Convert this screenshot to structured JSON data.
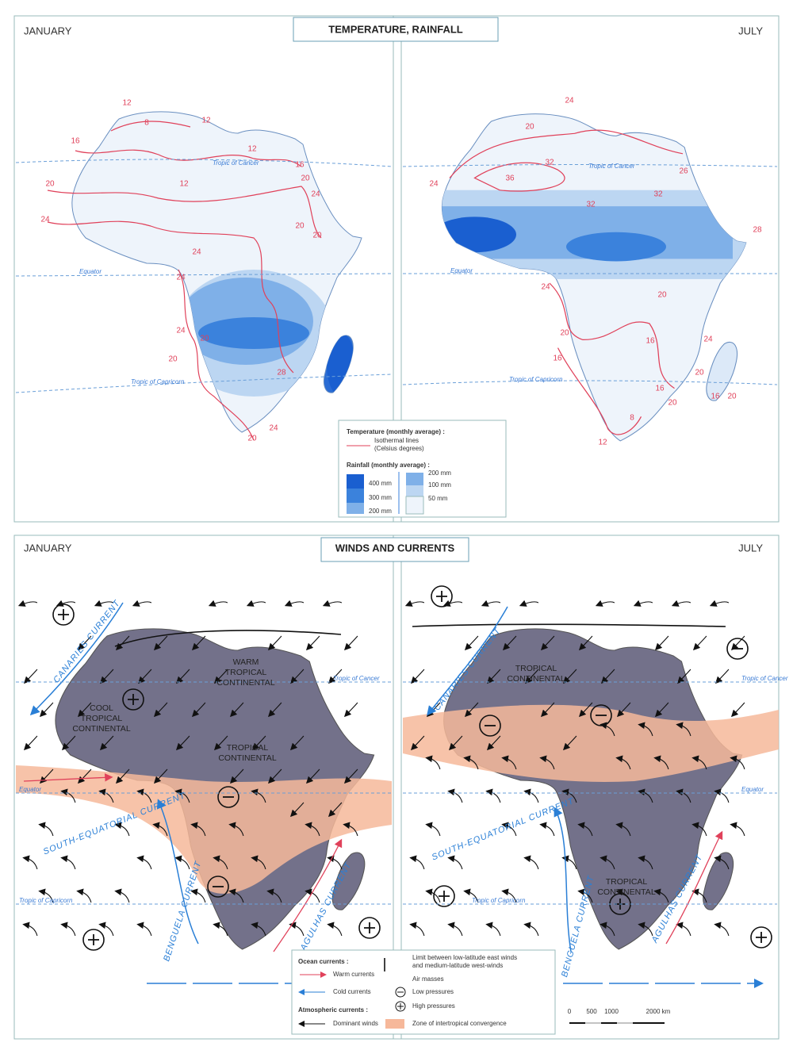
{
  "temperature_rainfall": {
    "title": "TEMPERATURE, RAINFALL",
    "january": {
      "month": "JANUARY",
      "parallels": [
        "Tropic of Cancer",
        "Equator",
        "Tropic of Capricorn"
      ],
      "isotherm_labels": [
        12,
        8,
        12,
        16,
        12,
        16,
        12,
        20,
        20,
        24,
        24,
        20,
        20,
        24,
        24,
        24,
        20,
        20,
        28,
        24,
        20
      ]
    },
    "july": {
      "month": "JULY",
      "parallels": [
        "Tropic of Cancer",
        "Equator",
        "Tropic of Capricorn"
      ],
      "isotherm_labels": [
        24,
        20,
        32,
        26,
        36,
        32,
        24,
        32,
        28,
        24,
        20,
        20,
        16,
        24,
        16,
        20,
        20,
        16,
        20,
        16,
        12,
        8
      ]
    },
    "legend": {
      "temperature_heading": "Temperature (monthly average) :",
      "isotherm_lines": [
        "Isothermal lines",
        "(Celsius degrees)"
      ],
      "rainfall_heading": "Rainfall (monthly average) :",
      "rainfall_left": [
        "400 mm",
        "300 mm",
        "200 mm"
      ],
      "rainfall_right": [
        "200 mm",
        "100 mm",
        "50 mm"
      ]
    }
  },
  "winds_currents": {
    "title": "WINDS AND CURRENTS",
    "january": {
      "month": "JANUARY",
      "parallels": [
        "Tropic of Cancer",
        "Equator",
        "Tropic of Capricorn"
      ],
      "air_masses": [
        [
          "WARM",
          "TROPICAL",
          "CONTINENTAL"
        ],
        [
          "COOL",
          "TROPICAL",
          "CONTINENTAL"
        ],
        [
          "TROPICAL",
          "CONTINENTAL"
        ]
      ],
      "currents": [
        "CANARIES CURRENT",
        "SOUTH-EQUATORIAL CURRENT",
        "BENGUELA CURRENT",
        "AGULHAS CURRENT"
      ]
    },
    "july": {
      "month": "JULY",
      "parallels": [
        "Tropic of Cancer",
        "Equator",
        "Tropic of Capricorn"
      ],
      "air_masses": [
        [
          "TROPICAL",
          "CONTINENTAL"
        ],
        [
          "TROPICAL",
          "CONTINENTAL"
        ]
      ],
      "currents": [
        "CANARIES CURRENT",
        "SOUTH-EQUATORIAL CURRENT",
        "BENGUELA CURRENT",
        "AGULHAS CURRENT"
      ]
    },
    "legend": {
      "ocean_heading": "Ocean currents :",
      "warm": "Warm currents",
      "cold": "Cold currents",
      "atmospheric_heading": "Atmospheric currents :",
      "winds": "Dominant winds",
      "limit": [
        "Limit between low-latitude east winds",
        "and medium-latitude west-winds"
      ],
      "air_masses_heading": "Air masses",
      "low": "Low pressures",
      "high": "High pressures",
      "itcz": "Zone of intertropical convergence"
    },
    "scale": [
      "0",
      "500",
      "1000",
      "2000 km"
    ]
  }
}
